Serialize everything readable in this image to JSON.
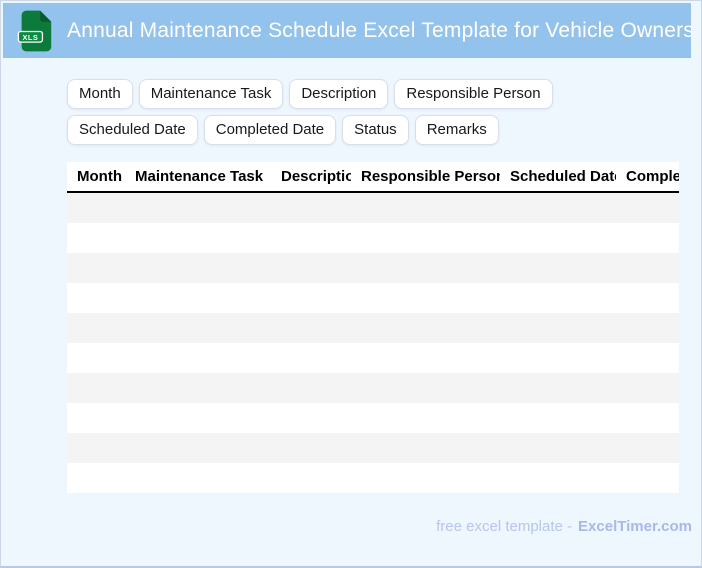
{
  "header": {
    "title": "Annual Maintenance Schedule Excel Template for Vehicle Owners",
    "file_icon_label": "XLS"
  },
  "field_chips": [
    {
      "label": "Month"
    },
    {
      "label": "Maintenance Task"
    },
    {
      "label": "Description"
    },
    {
      "label": "Responsible Person"
    },
    {
      "label": "Scheduled Date"
    },
    {
      "label": "Completed Date"
    },
    {
      "label": "Status"
    },
    {
      "label": "Remarks"
    }
  ],
  "table": {
    "columns": [
      "Month",
      "Maintenance Task",
      "Description",
      "Responsible Person",
      "Scheduled Date",
      "Completed Date"
    ],
    "empty_row_count": 10
  },
  "footer": {
    "prefix": "free excel template -",
    "brand": "ExcelTimer.com"
  },
  "colors": {
    "header_bar": "#93c2ec",
    "page_background": "#eef6fe",
    "icon_green": "#0c7a3b",
    "icon_fold_green": "#085c2b",
    "stripe_gray": "#f4f4f5",
    "footer_text": "#b9c5ec",
    "footer_brand": "#a9b8e8"
  }
}
